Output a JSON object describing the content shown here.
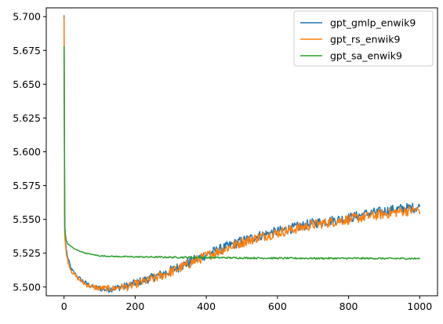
{
  "chart_data": {
    "type": "line",
    "title": "",
    "xlabel": "",
    "ylabel": "",
    "xlim": [
      -50,
      1050
    ],
    "ylim": [
      5.4935,
      5.7065
    ],
    "x_ticks": [
      0,
      200,
      400,
      600,
      800,
      1000
    ],
    "x_tick_labels": [
      "0",
      "200",
      "400",
      "600",
      "800",
      "1000"
    ],
    "y_ticks": [
      5.5,
      5.525,
      5.55,
      5.575,
      5.6,
      5.625,
      5.65,
      5.675,
      5.7
    ],
    "y_tick_labels": [
      "5.500",
      "5.525",
      "5.550",
      "5.575",
      "5.600",
      "5.625",
      "5.650",
      "5.675",
      "5.700"
    ],
    "grid": false,
    "legend_position": "top-right",
    "series": [
      {
        "name": "gpt_gmlp_enwik9",
        "color": "#1f77b4",
        "x": [
          0,
          2,
          5,
          10,
          20,
          40,
          60,
          80,
          100,
          120,
          140,
          160,
          180,
          200,
          250,
          300,
          350,
          400,
          450,
          500,
          550,
          600,
          650,
          700,
          750,
          800,
          850,
          900,
          950,
          1000
        ],
        "y": [
          5.701,
          5.54,
          5.53,
          5.522,
          5.513,
          5.507,
          5.503,
          5.5,
          5.499,
          5.498,
          5.499,
          5.5,
          5.501,
          5.503,
          5.507,
          5.512,
          5.518,
          5.524,
          5.529,
          5.534,
          5.538,
          5.541,
          5.544,
          5.547,
          5.549,
          5.551,
          5.554,
          5.556,
          5.558,
          5.559
        ],
        "noise": 0.0025
      },
      {
        "name": "gpt_rs_enwik9",
        "color": "#ff7f0e",
        "x": [
          0,
          2,
          5,
          10,
          20,
          40,
          60,
          80,
          100,
          120,
          140,
          160,
          180,
          200,
          250,
          300,
          350,
          400,
          450,
          500,
          550,
          600,
          650,
          700,
          750,
          800,
          850,
          900,
          950,
          1000
        ],
        "y": [
          5.7,
          5.538,
          5.528,
          5.52,
          5.512,
          5.506,
          5.502,
          5.5,
          5.499,
          5.499,
          5.499,
          5.5,
          5.5,
          5.502,
          5.506,
          5.511,
          5.517,
          5.523,
          5.528,
          5.533,
          5.537,
          5.54,
          5.543,
          5.546,
          5.548,
          5.55,
          5.552,
          5.554,
          5.556,
          5.557
        ],
        "noise": 0.0025
      },
      {
        "name": "gpt_sa_enwik9",
        "color": "#2ca02c",
        "x": [
          0,
          2,
          5,
          10,
          20,
          30,
          40,
          50,
          60,
          80,
          100,
          150,
          200,
          300,
          400,
          500,
          600,
          700,
          800,
          900,
          1000
        ],
        "y": [
          5.678,
          5.545,
          5.535,
          5.532,
          5.53,
          5.528,
          5.527,
          5.526,
          5.525,
          5.524,
          5.523,
          5.5225,
          5.5223,
          5.522,
          5.5218,
          5.5215,
          5.5213,
          5.5212,
          5.5212,
          5.5211,
          5.521
        ],
        "noise": 0.0004
      }
    ]
  }
}
